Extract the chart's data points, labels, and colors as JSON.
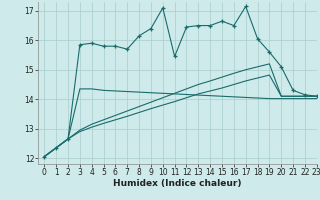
{
  "bg_color": "#ceeaea",
  "grid_color": "#aacccc",
  "line_color": "#1a6b6b",
  "xlabel": "Humidex (Indice chaleur)",
  "xlim": [
    -0.5,
    23
  ],
  "ylim": [
    11.8,
    17.3
  ],
  "yticks": [
    12,
    13,
    14,
    15,
    16,
    17
  ],
  "xticks": [
    0,
    1,
    2,
    3,
    4,
    5,
    6,
    7,
    8,
    9,
    10,
    11,
    12,
    13,
    14,
    15,
    16,
    17,
    18,
    19,
    20,
    21,
    22,
    23
  ],
  "line1_x": [
    0,
    1,
    2,
    3,
    4,
    5,
    6,
    7,
    8,
    9,
    10,
    11,
    12,
    13,
    14,
    15,
    16,
    17,
    18,
    19,
    20,
    21,
    22,
    23
  ],
  "line1_y": [
    12.05,
    12.35,
    12.65,
    15.85,
    15.9,
    15.8,
    15.8,
    15.7,
    16.15,
    16.4,
    17.1,
    15.45,
    16.45,
    16.5,
    16.5,
    16.65,
    16.5,
    17.15,
    16.05,
    15.6,
    15.1,
    14.3,
    14.15,
    14.1
  ],
  "line2_x": [
    0,
    2,
    3,
    4,
    5,
    6,
    7,
    8,
    9,
    10,
    11,
    12,
    13,
    14,
    15,
    16,
    17,
    18,
    19,
    20,
    21,
    22,
    23
  ],
  "line2_y": [
    12.05,
    12.65,
    14.35,
    14.35,
    14.3,
    14.28,
    14.26,
    14.24,
    14.22,
    14.2,
    14.18,
    14.16,
    14.14,
    14.12,
    14.1,
    14.08,
    14.06,
    14.04,
    14.02,
    14.02,
    14.02,
    14.02,
    14.02
  ],
  "line3_x": [
    0,
    1,
    2,
    3,
    4,
    5,
    6,
    7,
    8,
    9,
    10,
    11,
    12,
    13,
    14,
    15,
    16,
    17,
    18,
    19,
    20,
    21,
    22,
    23
  ],
  "line3_y": [
    12.05,
    12.35,
    12.65,
    12.95,
    13.15,
    13.3,
    13.45,
    13.6,
    13.75,
    13.9,
    14.05,
    14.2,
    14.35,
    14.5,
    14.62,
    14.75,
    14.88,
    15.0,
    15.1,
    15.2,
    14.1,
    14.1,
    14.1,
    14.1
  ],
  "line4_x": [
    0,
    1,
    2,
    3,
    4,
    5,
    6,
    7,
    8,
    9,
    10,
    11,
    12,
    13,
    14,
    15,
    16,
    17,
    18,
    19,
    20,
    21,
    22,
    23
  ],
  "line4_y": [
    12.05,
    12.35,
    12.65,
    12.9,
    13.05,
    13.18,
    13.3,
    13.42,
    13.55,
    13.68,
    13.8,
    13.92,
    14.05,
    14.18,
    14.28,
    14.38,
    14.5,
    14.62,
    14.72,
    14.82,
    14.1,
    14.1,
    14.1,
    14.1
  ]
}
